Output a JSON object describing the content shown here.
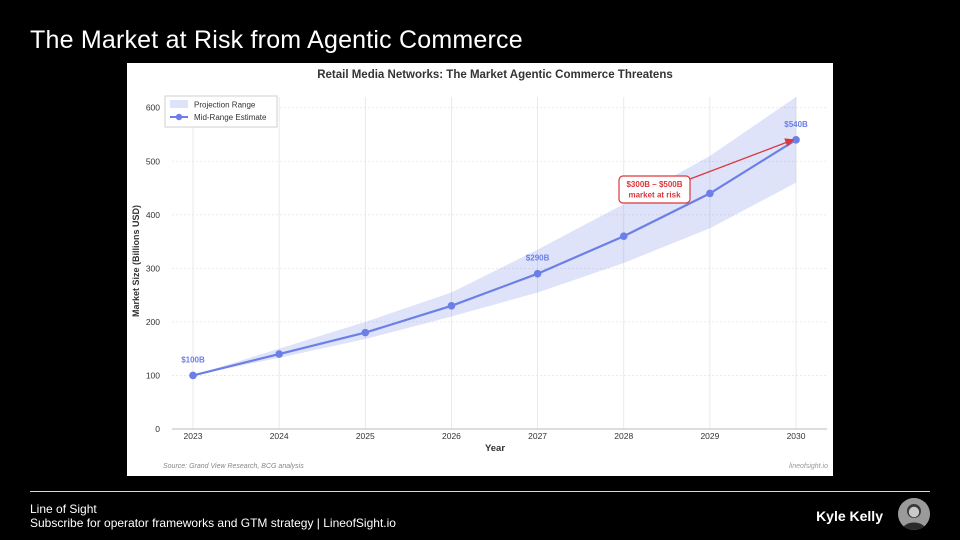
{
  "slide": {
    "title": "The Market at Risk from Agentic Commerce"
  },
  "footer": {
    "brand": "Line of Sight",
    "tagline": "Subscribe for operator frameworks and GTM strategy | LineofSight.io",
    "author": "Kyle Kelly"
  },
  "chart_data": {
    "type": "line",
    "title": "Retail Media Networks: The Market Agentic Commerce Threatens",
    "xlabel": "Year",
    "ylabel": "Market Size (Billions USD)",
    "x": [
      2023,
      2024,
      2025,
      2026,
      2027,
      2028,
      2029,
      2030
    ],
    "ylim": [
      0,
      620
    ],
    "yticks": [
      0,
      100,
      200,
      300,
      400,
      500,
      600
    ],
    "grid": true,
    "legend_position": "top-left",
    "series": [
      {
        "name": "Mid-Range Estimate",
        "values": [
          100,
          140,
          180,
          230,
          290,
          360,
          440,
          540
        ],
        "color": "#6b7fe6"
      }
    ],
    "band": {
      "name": "Projection Range",
      "lower": [
        100,
        133,
        168,
        210,
        255,
        310,
        375,
        460
      ],
      "upper": [
        100,
        150,
        200,
        255,
        335,
        420,
        510,
        620
      ],
      "color": "#6b7fe6",
      "opacity": 0.22
    },
    "point_labels": [
      {
        "x": 2023,
        "y": 100,
        "text": "$100B"
      },
      {
        "x": 2027,
        "y": 290,
        "text": "$290B"
      },
      {
        "x": 2030,
        "y": 540,
        "text": "$540B"
      }
    ],
    "annotation": {
      "line1": "$300B – $500B",
      "line2": "market at risk",
      "target_x": 2030,
      "target_y": 540,
      "color": "#d9383c"
    },
    "source": "Source: Grand View Research, BCG analysis",
    "watermark": "lineofsight.io"
  }
}
